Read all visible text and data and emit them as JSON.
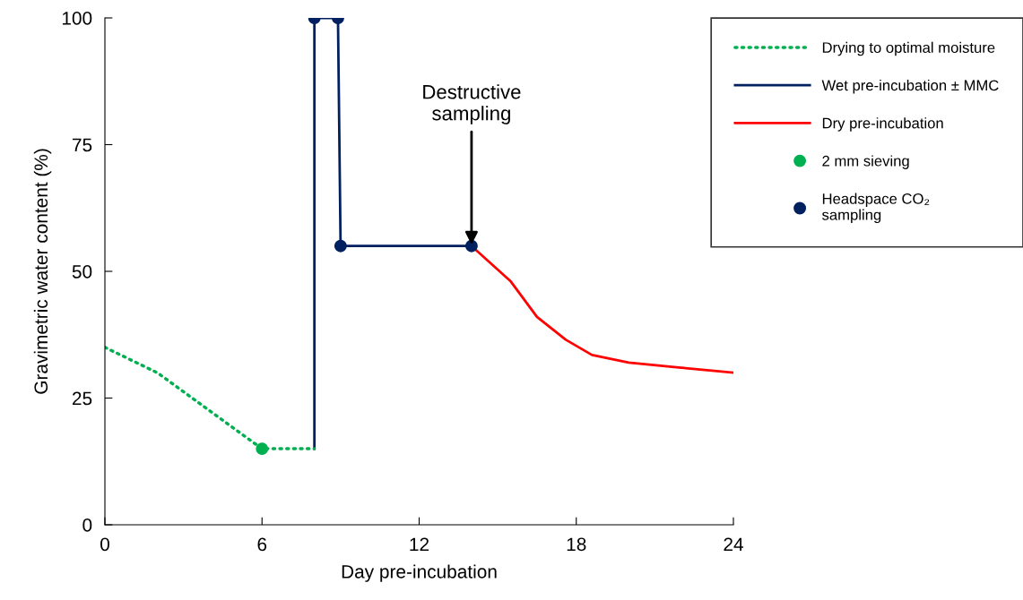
{
  "chart_data": {
    "type": "line",
    "xlabel": "Day pre-incubation",
    "ylabel": "Gravimetric water content (%)",
    "xlim": [
      0,
      24
    ],
    "xticks": [
      0,
      6,
      12,
      18,
      24
    ],
    "ylim": [
      0,
      100
    ],
    "yticks": [
      0,
      25,
      50,
      75,
      100
    ],
    "grid": false,
    "legend": "top right",
    "series": [
      {
        "name": "Drying to optimal moisture",
        "line_style": "dotted",
        "color": "#00b050",
        "x": [
          0,
          2,
          6,
          8
        ],
        "values": [
          35,
          30,
          15,
          15
        ]
      },
      {
        "name": "Wet pre-incubation ± MMC",
        "line_style": "solid",
        "color": "#002060",
        "x": [
          8,
          8,
          8.9,
          9,
          14
        ],
        "values": [
          15,
          100,
          100,
          55,
          55
        ]
      },
      {
        "name": "Dry pre-incubation",
        "line_style": "solid",
        "color": "#ff0000",
        "x": [
          14,
          15.5,
          16.5,
          17.6,
          18.6,
          20,
          22,
          24
        ],
        "values": [
          55,
          48,
          41,
          36.5,
          33.5,
          32,
          31,
          30
        ]
      },
      {
        "name": "2 mm sieving",
        "type": "scatter",
        "marker": "circle",
        "color": "#00b050",
        "x": [
          6
        ],
        "values": [
          15
        ]
      },
      {
        "name": "Headspace CO₂\nsampling",
        "type": "scatter",
        "marker": "circle",
        "color": "#002060",
        "x": [
          8,
          8.9,
          9,
          14
        ],
        "values": [
          100,
          100,
          55,
          55
        ]
      }
    ],
    "annotations": [
      {
        "text": "Destructive\nsampling",
        "x": 14,
        "y": 55
      }
    ]
  }
}
